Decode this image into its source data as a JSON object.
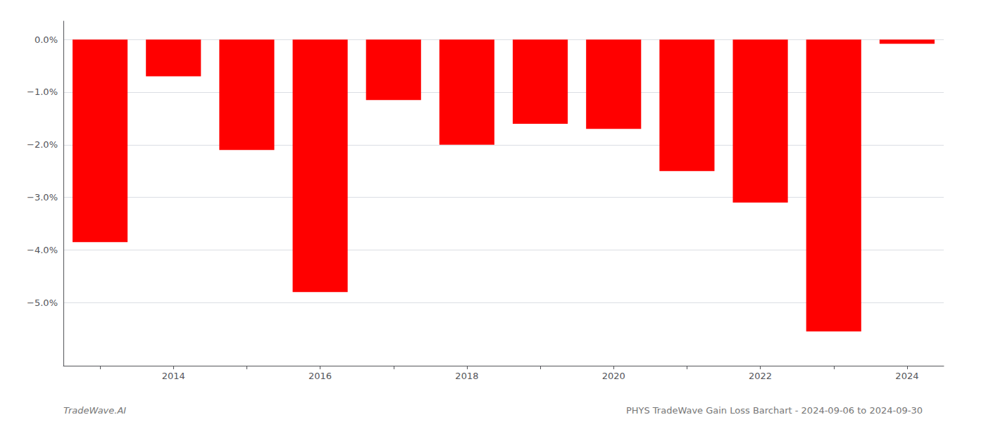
{
  "chart_data": {
    "type": "bar",
    "categories": [
      null,
      "2014",
      null,
      "2016",
      null,
      "2018",
      null,
      "2020",
      null,
      "2022",
      null,
      "2024"
    ],
    "values": [
      -3.85,
      -0.7,
      -2.1,
      -4.8,
      -1.15,
      -2.0,
      -1.6,
      -1.7,
      -2.5,
      -3.1,
      -5.55,
      -0.08
    ],
    "color": "#ff0000",
    "ylim": [
      -6.2,
      0.35
    ],
    "yticks": [
      {
        "value": 0.0,
        "label": "0.0%"
      },
      {
        "value": -1.0,
        "label": "−1.0%"
      },
      {
        "value": -2.0,
        "label": "−2.0%"
      },
      {
        "value": -3.0,
        "label": "−3.0%"
      },
      {
        "value": -4.0,
        "label": "−4.0%"
      },
      {
        "value": -5.0,
        "label": "−5.0%"
      }
    ],
    "grid": true,
    "annotations": [
      "TradeWave.AI",
      "PHYS TradeWave Gain Loss Barchart - 2024-09-06 to 2024-09-30"
    ]
  }
}
